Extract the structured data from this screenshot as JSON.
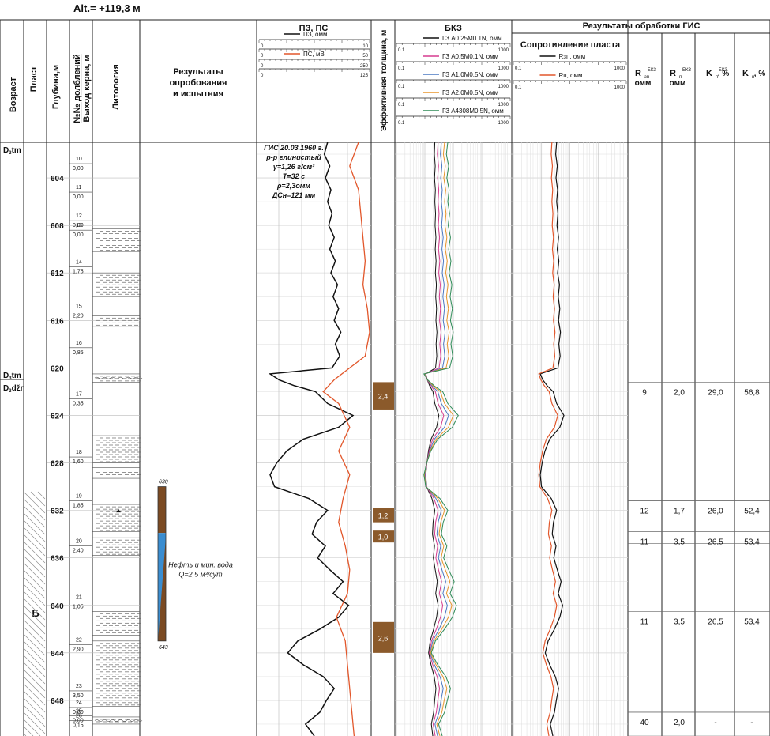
{
  "altitude": "Alt.= +119,3 м",
  "headers": {
    "age": "Возраст",
    "layer": "Пласт",
    "depth": "Глубина,м",
    "runs_line1": "№№ долблений",
    "runs_line2": "Выход керна, м",
    "lithology": "Литология",
    "testing_line1": "Результаты",
    "testing_line2": "опробования",
    "testing_line3": "и испытния",
    "sp_track": "ПЗ, ПС",
    "eff_thickness": "Эффективная толщина, м",
    "lateral": "БКЗ",
    "processing": "Результаты обработки ГИС",
    "resistivity": "Сопротивление пласта"
  },
  "sp_scales": [
    {
      "name": "ПЗ, омм",
      "left": "0",
      "right": "10",
      "color": "#111111"
    },
    {
      "name": "",
      "left": "0",
      "right": "50",
      "color": "#111111"
    },
    {
      "name": "ПС, мВ",
      "left": "0",
      "right": "250",
      "color": "#e2572b"
    },
    {
      "name": "",
      "left": "0",
      "right": "125",
      "color": "#111111"
    }
  ],
  "lateral_scales": [
    {
      "name": "ГЗ A0.25M0.1N, омм",
      "left": "0.1",
      "right": "1000",
      "color": "#111111"
    },
    {
      "name": "ГЗ A0.5M0.1N, омм",
      "left": "0.1",
      "right": "1000",
      "color": "#d63c8f"
    },
    {
      "name": "ГЗ A1.0M0.5N, омм",
      "left": "0.1",
      "right": "1000",
      "color": "#4a78c2"
    },
    {
      "name": "ГЗ A2.0M0.5N, омм",
      "left": "0.1",
      "right": "1000",
      "color": "#e8952c"
    },
    {
      "name": "ГЗ A4308M0.5N, омм",
      "left": "0.1",
      "right": "1000",
      "color": "#2e8b57"
    }
  ],
  "resistivity_scales": [
    {
      "name": "Rзп, омм",
      "left": "0.1",
      "right": "1000",
      "color": "#111111"
    },
    {
      "name": "Rп, омм",
      "left": "0.1",
      "right": "1000",
      "color": "#e2572b"
    }
  ],
  "processing_headers": [
    {
      "main": "R",
      "sup": "БКЗ",
      "sub": "зп",
      "line2": "омм"
    },
    {
      "main": "R",
      "sup": "БКЗ",
      "sub": "п",
      "line2": "омм"
    },
    {
      "main": "K",
      "sup": "БКЗ",
      "sub": "п",
      "line2": ", %"
    },
    {
      "main": "K",
      "sup": "",
      "sub": "н",
      "line2": ", %"
    }
  ],
  "ages": [
    {
      "label": "D",
      "sub": "3",
      "tail": "tm",
      "depth": 601
    },
    {
      "label": "D",
      "sub": "3",
      "tail": "tm",
      "depth": 620.3
    },
    {
      "label": "D",
      "sub": "3",
      "tail": "džr",
      "depth": 621.2
    }
  ],
  "layer_label": "Б",
  "depth_labels": [
    "604",
    "608",
    "612",
    "616",
    "620",
    "624",
    "628",
    "632",
    "636",
    "640",
    "644",
    "648"
  ],
  "core_runs": [
    {
      "run": "10",
      "recovery": "0,00",
      "depth": 602.8
    },
    {
      "run": "11",
      "recovery": "0,00",
      "depth": 605.2
    },
    {
      "run": "12",
      "recovery": "0,00",
      "depth": 607.6
    },
    {
      "run": "13",
      "recovery": "0,00",
      "depth": 608.4
    },
    {
      "run": "14",
      "recovery": "1,75",
      "depth": 611.5
    },
    {
      "run": "15",
      "recovery": "2,20",
      "depth": 615.2
    },
    {
      "run": "16",
      "recovery": "0,85",
      "depth": 618.3
    },
    {
      "run": "17",
      "recovery": "0,35",
      "depth": 622.6
    },
    {
      "run": "18",
      "recovery": "1,60",
      "depth": 627.5
    },
    {
      "run": "19",
      "recovery": "1,85",
      "depth": 631.2
    },
    {
      "run": "20",
      "recovery": "2,40",
      "depth": 635.0
    },
    {
      "run": "21",
      "recovery": "1,05",
      "depth": 639.7
    },
    {
      "run": "22",
      "recovery": "2,90",
      "depth": 643.3
    },
    {
      "run": "23",
      "recovery": "3,50",
      "depth": 647.2
    },
    {
      "run": "24",
      "recovery": "0,60",
      "depth": 648.6
    },
    {
      "run": "25",
      "recovery": "0,00",
      "depth": 649.3
    },
    {
      "run": "26",
      "recovery": "0,15",
      "depth": 649.7
    }
  ],
  "gis_note": [
    "ГИС 20.03.1960 г.",
    "р-р глинистый",
    "γ=1,26 г/см³",
    "T=32 с",
    "ρ=2,3омм",
    "ДСн=121 мм"
  ],
  "test_interval": {
    "top_label": "630",
    "bottom_label": "643",
    "top": 630,
    "bottom": 643,
    "result_line1": "Нефть и мин. вода",
    "result_line2": "Q=2,5 м³/сут"
  },
  "eff_intervals": [
    {
      "label": "2,4",
      "top": 621.2,
      "bottom": 623.5
    },
    {
      "label": "1,2",
      "top": 631.8,
      "bottom": 633.0
    },
    {
      "label": "1,0",
      "top": 633.7,
      "bottom": 634.7
    },
    {
      "label": "2,6",
      "top": 641.4,
      "bottom": 644.0
    }
  ],
  "processing_rows": [
    {
      "r_zp": "9",
      "r_p": "2,0",
      "kp": "29,0",
      "kn": "56,8",
      "top": 621.2,
      "bottom": 631.2
    },
    {
      "r_zp": "12",
      "r_p": "1,7",
      "kp": "26,0",
      "kn": "52,4",
      "top": 631.2,
      "bottom": 633.8
    },
    {
      "r_zp": "11",
      "r_p": "3,5",
      "kp": "26,5",
      "kn": "53,4",
      "top": 633.8,
      "bottom": 634.8
    },
    {
      "r_zp": "11",
      "r_p": "3,5",
      "kp": "26,5",
      "kn": "53,4",
      "top": 640.5,
      "bottom": 649.0
    },
    {
      "r_zp": "40",
      "r_p": "2,0",
      "kp": "-",
      "kn": "-",
      "top": 649.0,
      "bottom": 651.0
    }
  ],
  "lithology_beds": [
    {
      "top": 608.3,
      "bottom": 610.2,
      "type": "shale"
    },
    {
      "top": 612.0,
      "bottom": 614.0,
      "type": "shale"
    },
    {
      "top": 615.6,
      "bottom": 616.5,
      "type": "shale"
    },
    {
      "top": 620.5,
      "bottom": 621.2,
      "type": "limestone"
    },
    {
      "top": 625.7,
      "bottom": 628.0,
      "type": "shale"
    },
    {
      "top": 628.4,
      "bottom": 629.3,
      "type": "shale"
    },
    {
      "top": 631.5,
      "bottom": 633.8,
      "type": "sand"
    },
    {
      "top": 634.3,
      "bottom": 635.8,
      "type": "shale"
    },
    {
      "top": 640.5,
      "bottom": 642.5,
      "type": "shale"
    },
    {
      "top": 643.0,
      "bottom": 648.5,
      "type": "shale"
    },
    {
      "top": 649.4,
      "bottom": 650.0,
      "type": "limestone"
    }
  ],
  "colors": {
    "oil": "#7b4a22",
    "water": "#3a8dd0",
    "eff": "#8b5a2b",
    "sp": "#e2572b"
  },
  "chart_data": {
    "type": "line",
    "depth_range": [
      601,
      651
    ],
    "pz": [
      [
        601,
        6.2
      ],
      [
        602,
        5.9
      ],
      [
        603,
        6.4
      ],
      [
        604,
        6.0
      ],
      [
        605,
        6.5
      ],
      [
        606,
        6.2
      ],
      [
        607,
        6.6
      ],
      [
        608,
        6.3
      ],
      [
        609,
        6.8
      ],
      [
        610,
        6.4
      ],
      [
        611,
        6.9
      ],
      [
        612,
        6.5
      ],
      [
        613,
        7.1
      ],
      [
        614,
        6.7
      ],
      [
        615,
        7.2
      ],
      [
        616,
        6.8
      ],
      [
        617,
        7.4
      ],
      [
        618,
        6.9
      ],
      [
        619,
        7.3
      ],
      [
        620,
        6.6
      ],
      [
        620.5,
        1.0
      ],
      [
        621,
        1.8
      ],
      [
        621.5,
        3.2
      ],
      [
        622,
        5.1
      ],
      [
        623,
        6.2
      ],
      [
        624,
        8.5
      ],
      [
        625,
        7.2
      ],
      [
        626,
        4.0
      ],
      [
        627,
        2.5
      ],
      [
        628,
        1.6
      ],
      [
        629,
        1.0
      ],
      [
        630,
        1.4
      ],
      [
        631,
        4.5
      ],
      [
        632,
        6.2
      ],
      [
        633,
        5.2
      ],
      [
        634,
        4.8
      ],
      [
        635,
        6.0
      ],
      [
        636,
        5.3
      ],
      [
        637,
        6.4
      ],
      [
        638,
        7.6
      ],
      [
        639,
        6.7
      ],
      [
        640,
        8.1
      ],
      [
        641,
        7.2
      ],
      [
        642,
        5.5
      ],
      [
        643,
        3.5
      ],
      [
        644,
        2.6
      ],
      [
        645,
        4.0
      ],
      [
        646,
        5.8
      ],
      [
        647,
        6.8
      ],
      [
        648,
        6.1
      ],
      [
        649,
        5.5
      ],
      [
        650,
        4.2
      ],
      [
        651,
        5.0
      ]
    ],
    "ps": [
      [
        601,
        4.5
      ],
      [
        603,
        4.1
      ],
      [
        605,
        4.5
      ],
      [
        607,
        4.6
      ],
      [
        609,
        4.7
      ],
      [
        611,
        4.8
      ],
      [
        613,
        4.7
      ],
      [
        615,
        4.9
      ],
      [
        617,
        5.0
      ],
      [
        619,
        4.8
      ],
      [
        621,
        3.4
      ],
      [
        622,
        2.9
      ],
      [
        623,
        3.6
      ],
      [
        625,
        4.1
      ],
      [
        627,
        3.6
      ],
      [
        629,
        4.1
      ],
      [
        631,
        3.8
      ],
      [
        632,
        3.7
      ],
      [
        633,
        3.6
      ],
      [
        635,
        3.9
      ],
      [
        637,
        4.1
      ],
      [
        639,
        4.0
      ],
      [
        641,
        3.5
      ],
      [
        643,
        3.9
      ],
      [
        645,
        4.0
      ],
      [
        647,
        4.1
      ],
      [
        649,
        4.2
      ],
      [
        651,
        4.3
      ]
    ]
  }
}
